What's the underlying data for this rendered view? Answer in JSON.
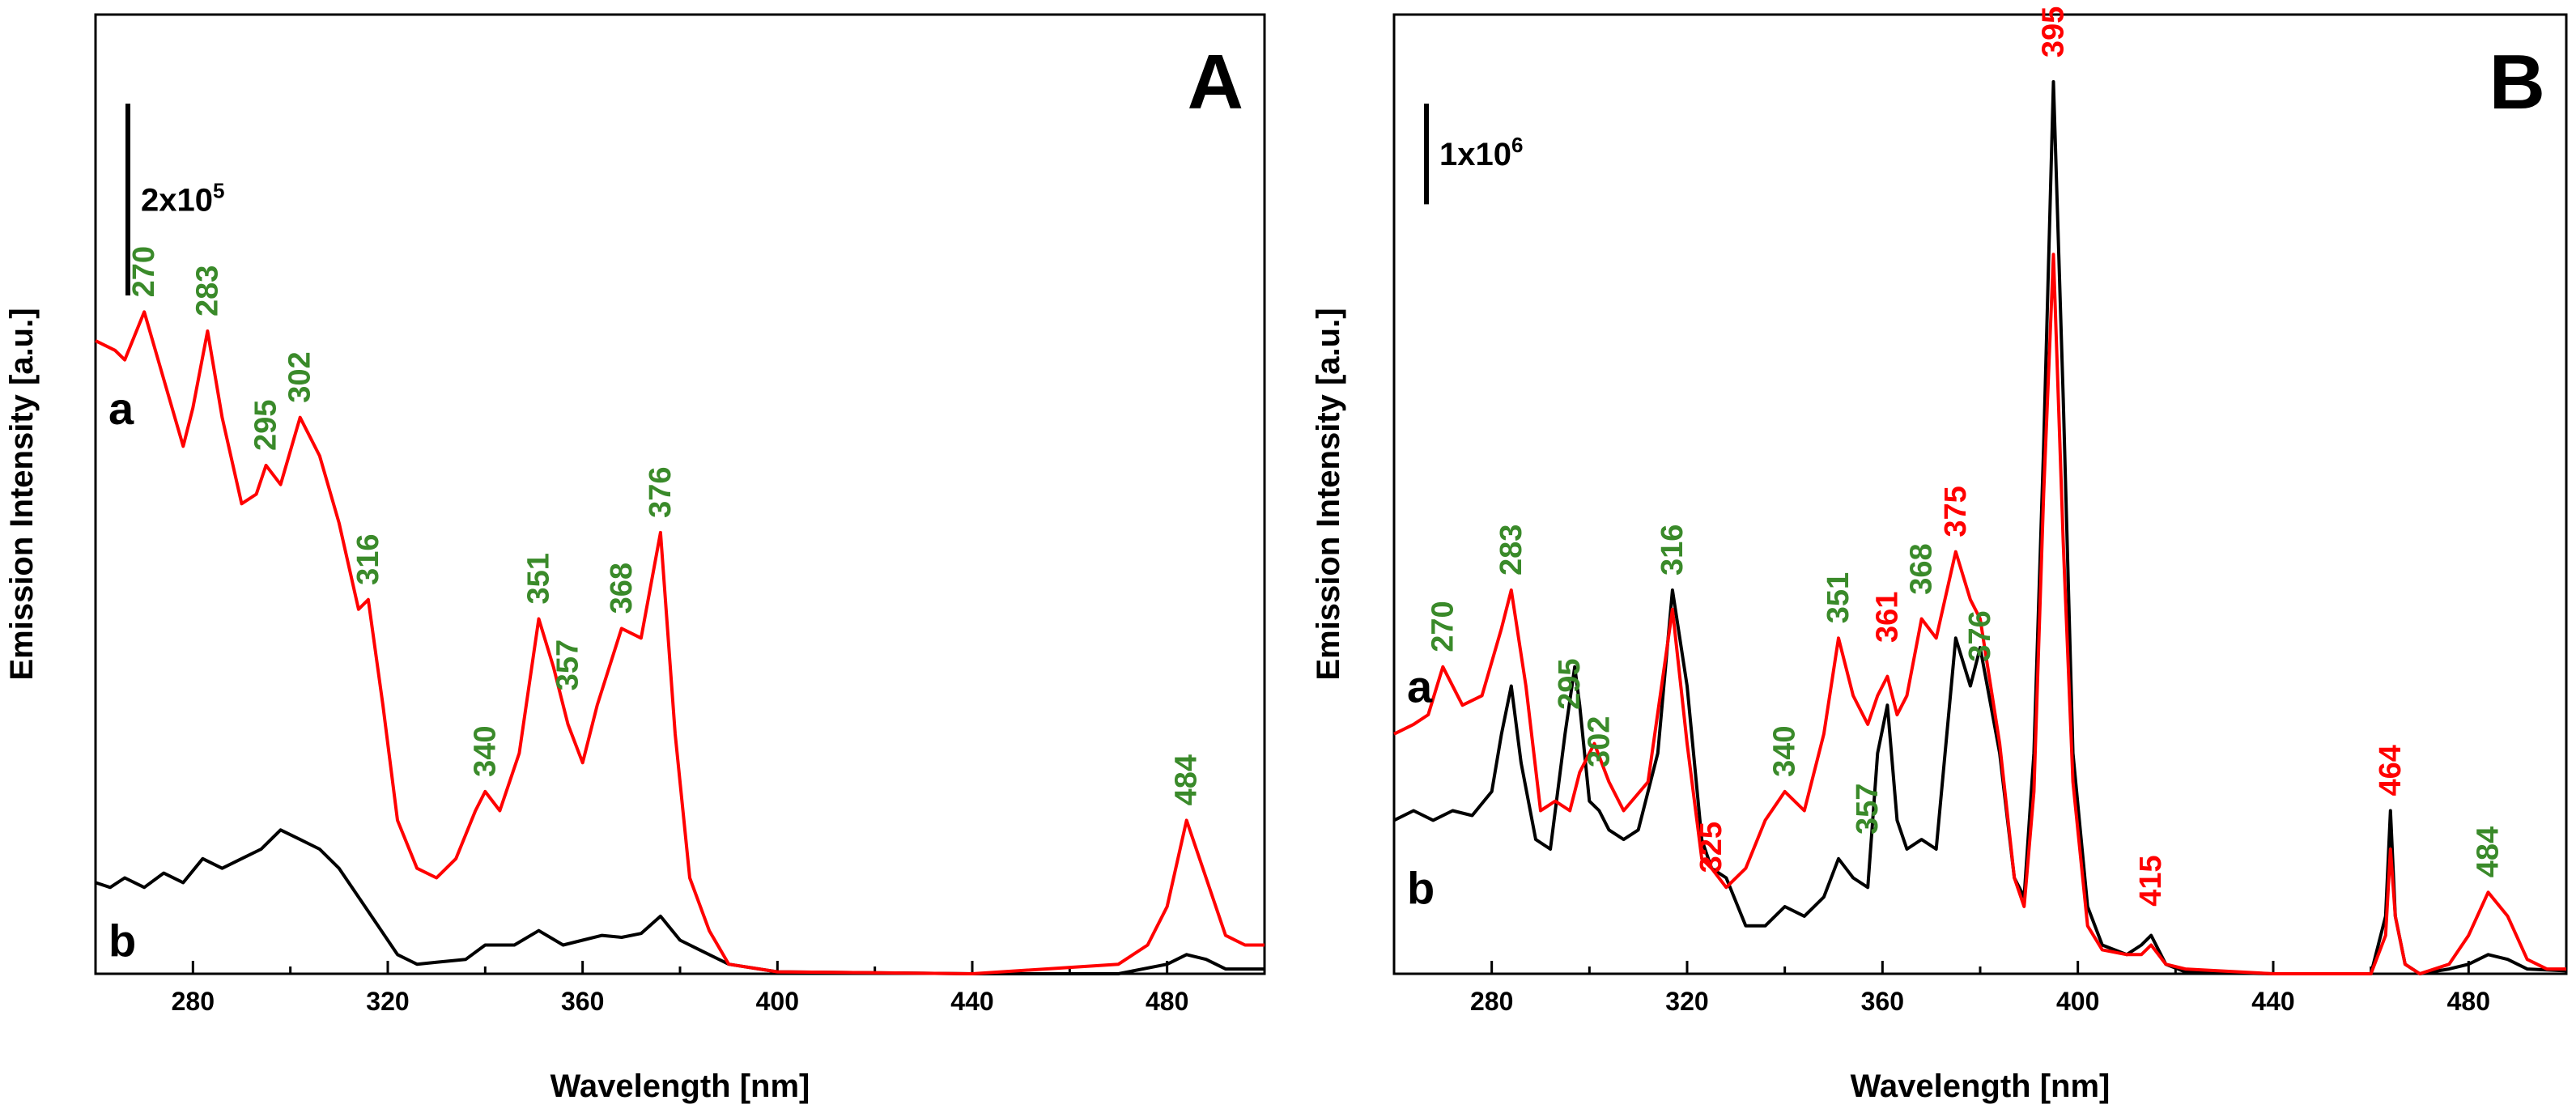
{
  "chart_data": [
    {
      "type": "line",
      "panel": "A",
      "xlabel": "Wavelength [nm]",
      "ylabel": "Emission Intensity [a.u.]",
      "xlim": [
        260,
        500
      ],
      "ylim": [
        0,
        10
      ],
      "xticks": [
        280,
        320,
        360,
        400,
        440,
        480
      ],
      "scale_bar": {
        "value": 2,
        "text": "2x10",
        "exponent": "5"
      },
      "curve_labels": [
        {
          "text": "a",
          "y": 5.9
        },
        {
          "text": "b",
          "y": 0.35
        }
      ],
      "series": [
        {
          "name": "a",
          "color": "#ff0000",
          "x": [
            260,
            264,
            266,
            270,
            274,
            278,
            280,
            283,
            286,
            290,
            293,
            295,
            298,
            302,
            306,
            310,
            314,
            316,
            319,
            322,
            326,
            330,
            334,
            338,
            340,
            343,
            347,
            351,
            354,
            357,
            360,
            363,
            368,
            372,
            376,
            379,
            382,
            386,
            390,
            400,
            440,
            470,
            476,
            480,
            484,
            488,
            492,
            496,
            500
          ],
          "y": [
            6.6,
            6.5,
            6.4,
            6.9,
            6.2,
            5.5,
            5.9,
            6.7,
            5.8,
            4.9,
            5.0,
            5.3,
            5.1,
            5.8,
            5.4,
            4.7,
            3.8,
            3.9,
            2.8,
            1.6,
            1.1,
            1.0,
            1.2,
            1.7,
            1.9,
            1.7,
            2.3,
            3.7,
            3.2,
            2.6,
            2.2,
            2.8,
            3.6,
            3.5,
            4.6,
            2.5,
            1.0,
            0.45,
            0.1,
            0.02,
            0.0,
            0.1,
            0.3,
            0.7,
            1.6,
            1.0,
            0.4,
            0.3,
            0.3
          ]
        },
        {
          "name": "b",
          "color": "#000000",
          "x": [
            260,
            263,
            266,
            270,
            274,
            278,
            282,
            286,
            290,
            294,
            298,
            302,
            306,
            310,
            314,
            318,
            322,
            326,
            330,
            336,
            340,
            346,
            351,
            356,
            360,
            364,
            368,
            372,
            376,
            380,
            384,
            390,
            400,
            440,
            470,
            480,
            484,
            488,
            492,
            500
          ],
          "y": [
            0.95,
            0.9,
            1.0,
            0.9,
            1.05,
            0.95,
            1.2,
            1.1,
            1.2,
            1.3,
            1.5,
            1.4,
            1.3,
            1.1,
            0.8,
            0.5,
            0.2,
            0.1,
            0.12,
            0.15,
            0.3,
            0.3,
            0.45,
            0.3,
            0.35,
            0.4,
            0.38,
            0.42,
            0.6,
            0.35,
            0.25,
            0.1,
            0.02,
            0.0,
            0.0,
            0.1,
            0.2,
            0.15,
            0.05,
            0.05
          ]
        }
      ],
      "peak_labels": [
        {
          "text": "270",
          "x": 270,
          "y": 6.9,
          "color": "#3a8a2a"
        },
        {
          "text": "283",
          "x": 283,
          "y": 6.7,
          "color": "#3a8a2a"
        },
        {
          "text": "295",
          "x": 295,
          "y": 5.3,
          "color": "#3a8a2a"
        },
        {
          "text": "302",
          "x": 302,
          "y": 5.8,
          "color": "#3a8a2a"
        },
        {
          "text": "316",
          "x": 316,
          "y": 3.9,
          "color": "#3a8a2a"
        },
        {
          "text": "340",
          "x": 340,
          "y": 1.9,
          "color": "#3a8a2a"
        },
        {
          "text": "351",
          "x": 351,
          "y": 3.7,
          "color": "#3a8a2a"
        },
        {
          "text": "357",
          "x": 357,
          "y": 2.8,
          "color": "#3a8a2a"
        },
        {
          "text": "368",
          "x": 368,
          "y": 3.6,
          "color": "#3a8a2a"
        },
        {
          "text": "376",
          "x": 376,
          "y": 4.6,
          "color": "#3a8a2a"
        },
        {
          "text": "484",
          "x": 484,
          "y": 1.6,
          "color": "#3a8a2a"
        }
      ]
    },
    {
      "type": "line",
      "panel": "B",
      "xlabel": "Wavelength [nm]",
      "ylabel": "Emission Intensity [a.u.]",
      "xlim": [
        260,
        500
      ],
      "ylim": [
        0,
        10
      ],
      "xticks": [
        280,
        320,
        360,
        400,
        440,
        480
      ],
      "scale_bar": {
        "value": 1.05,
        "text": "1x10",
        "exponent": "6"
      },
      "curve_labels": [
        {
          "text": "a",
          "y": 3.0
        },
        {
          "text": "b",
          "y": 0.9
        }
      ],
      "series": [
        {
          "name": "a",
          "color": "#ff0000",
          "x": [
            260,
            264,
            267,
            270,
            274,
            278,
            282,
            284,
            287,
            290,
            293,
            296,
            298,
            301,
            304,
            307,
            312,
            317,
            320,
            323,
            325,
            328,
            332,
            336,
            340,
            344,
            348,
            351,
            354,
            357,
            359,
            361,
            363,
            365,
            368,
            371,
            375,
            378,
            380,
            384,
            387,
            389,
            391,
            393,
            395,
            397,
            399,
            402,
            405,
            410,
            413,
            415,
            418,
            422,
            440,
            460,
            463,
            464,
            465,
            467,
            470,
            476,
            480,
            484,
            488,
            492,
            496,
            500
          ],
          "y": [
            2.5,
            2.6,
            2.7,
            3.2,
            2.8,
            2.9,
            3.6,
            4.0,
            3.0,
            1.7,
            1.8,
            1.7,
            2.1,
            2.4,
            2.0,
            1.7,
            2.0,
            3.8,
            2.4,
            1.2,
            1.1,
            0.9,
            1.1,
            1.6,
            1.9,
            1.7,
            2.5,
            3.5,
            2.9,
            2.6,
            2.9,
            3.1,
            2.7,
            2.9,
            3.7,
            3.5,
            4.4,
            3.9,
            3.7,
            2.4,
            1.0,
            0.7,
            1.9,
            5.0,
            7.5,
            4.5,
            2.0,
            0.5,
            0.25,
            0.2,
            0.2,
            0.3,
            0.1,
            0.05,
            0.0,
            0.0,
            0.4,
            1.3,
            0.6,
            0.1,
            0.0,
            0.1,
            0.4,
            0.85,
            0.6,
            0.15,
            0.05,
            0.05
          ]
        },
        {
          "name": "b",
          "color": "#000000",
          "x": [
            260,
            264,
            268,
            272,
            276,
            280,
            282,
            284,
            286,
            289,
            292,
            295,
            297,
            298,
            300,
            302,
            304,
            307,
            310,
            314,
            317,
            320,
            323,
            325,
            328,
            332,
            336,
            340,
            344,
            348,
            351,
            354,
            357,
            359,
            361,
            363,
            365,
            368,
            371,
            375,
            378,
            380,
            384,
            387,
            389,
            391,
            393,
            395,
            397,
            399,
            402,
            405,
            410,
            413,
            415,
            418,
            422,
            440,
            460,
            463,
            464,
            465,
            467,
            470,
            476,
            480,
            484,
            488,
            492,
            500
          ],
          "y": [
            1.6,
            1.7,
            1.6,
            1.7,
            1.65,
            1.9,
            2.5,
            3.0,
            2.2,
            1.4,
            1.3,
            2.5,
            3.2,
            2.8,
            1.8,
            1.7,
            1.5,
            1.4,
            1.5,
            2.3,
            4.0,
            3.0,
            1.4,
            1.1,
            1.0,
            0.5,
            0.5,
            0.7,
            0.6,
            0.8,
            1.2,
            1.0,
            0.9,
            2.3,
            2.8,
            1.6,
            1.3,
            1.4,
            1.3,
            3.5,
            3.0,
            3.4,
            2.3,
            1.0,
            0.8,
            2.3,
            5.5,
            9.3,
            6.0,
            2.3,
            0.7,
            0.3,
            0.2,
            0.3,
            0.4,
            0.1,
            0.02,
            0.0,
            0.0,
            0.6,
            1.7,
            0.6,
            0.1,
            0.0,
            0.05,
            0.1,
            0.2,
            0.15,
            0.05,
            0.03
          ]
        }
      ],
      "peak_labels": [
        {
          "text": "270",
          "x": 270,
          "y": 3.2,
          "color": "#3a8a2a"
        },
        {
          "text": "283",
          "x": 284,
          "y": 4.0,
          "color": "#3a8a2a"
        },
        {
          "text": "295",
          "x": 296,
          "y": 2.6,
          "color": "#3a8a2a"
        },
        {
          "text": "302",
          "x": 302,
          "y": 2.0,
          "color": "#3a8a2a"
        },
        {
          "text": "316",
          "x": 317,
          "y": 4.0,
          "color": "#3a8a2a"
        },
        {
          "text": "325",
          "x": 325,
          "y": 0.9,
          "color": "#ff0000"
        },
        {
          "text": "340",
          "x": 340,
          "y": 1.9,
          "color": "#3a8a2a"
        },
        {
          "text": "351",
          "x": 351,
          "y": 3.5,
          "color": "#3a8a2a"
        },
        {
          "text": "357",
          "x": 357,
          "y": 1.3,
          "color": "#3a8a2a"
        },
        {
          "text": "361",
          "x": 361,
          "y": 3.3,
          "color": "#ff0000"
        },
        {
          "text": "368",
          "x": 368,
          "y": 3.8,
          "color": "#3a8a2a"
        },
        {
          "text": "375",
          "x": 375,
          "y": 4.4,
          "color": "#ff0000"
        },
        {
          "text": "376",
          "x": 380,
          "y": 3.1,
          "color": "#3a8a2a"
        },
        {
          "text": "395",
          "x": 395,
          "y": 9.4,
          "color": "#ff0000"
        },
        {
          "text": "415",
          "x": 415,
          "y": 0.55,
          "color": "#ff0000"
        },
        {
          "text": "464",
          "x": 464,
          "y": 1.7,
          "color": "#ff0000"
        },
        {
          "text": "484",
          "x": 484,
          "y": 0.85,
          "color": "#3a8a2a"
        }
      ]
    }
  ]
}
